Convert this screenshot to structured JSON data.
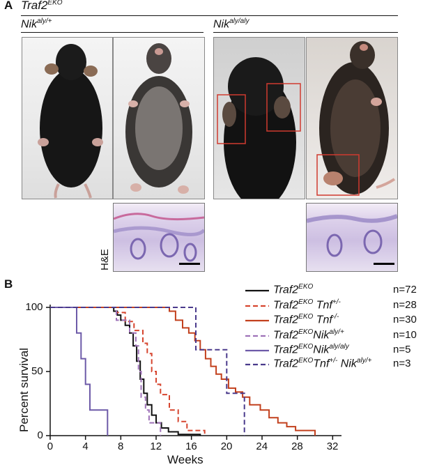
{
  "panel_a": {
    "letter": "A",
    "title": {
      "base": "Traf2",
      "sup": "EKO"
    },
    "group_left": {
      "base": "Nik",
      "sup": "aly/+"
    },
    "group_right": {
      "base": "Nik",
      "sup": "aly/aly"
    },
    "he_label": "H&E"
  },
  "panel_b": {
    "letter": "B"
  },
  "chart_data": {
    "type": "line",
    "xlabel": "Weeks",
    "ylabel": "Percent survival",
    "xlim": [
      0,
      33
    ],
    "ylim": [
      0,
      100
    ],
    "xticks": [
      0,
      4,
      8,
      12,
      16,
      20,
      24,
      28,
      32
    ],
    "yticks": [
      0,
      50,
      100
    ],
    "series": [
      {
        "name": "Traf2 EKO",
        "base": "Traf2",
        "sup1": "EKO",
        "extra": [],
        "n": "n=72",
        "color": "#111111",
        "dash": "",
        "points": [
          [
            0,
            100
          ],
          [
            7.2,
            100
          ],
          [
            7.2,
            97
          ],
          [
            7.6,
            97
          ],
          [
            7.6,
            94
          ],
          [
            8.0,
            94
          ],
          [
            8.0,
            90
          ],
          [
            8.5,
            90
          ],
          [
            8.5,
            86
          ],
          [
            9.0,
            86
          ],
          [
            9.0,
            80
          ],
          [
            9.4,
            80
          ],
          [
            9.4,
            70
          ],
          [
            9.8,
            70
          ],
          [
            9.8,
            58
          ],
          [
            10.2,
            58
          ],
          [
            10.2,
            44
          ],
          [
            10.6,
            44
          ],
          [
            10.6,
            33
          ],
          [
            11.0,
            33
          ],
          [
            11.0,
            24
          ],
          [
            11.5,
            24
          ],
          [
            11.5,
            16
          ],
          [
            12.0,
            16
          ],
          [
            12.0,
            10
          ],
          [
            12.6,
            10
          ],
          [
            12.6,
            6
          ],
          [
            13.4,
            6
          ],
          [
            13.4,
            3
          ],
          [
            14.5,
            3
          ],
          [
            14.5,
            1
          ],
          [
            17.0,
            1
          ],
          [
            17.0,
            0
          ]
        ]
      },
      {
        "name": "Traf2 EKO Tnf+/-",
        "base": "Traf2",
        "sup1": "EKO",
        "extra": [
          {
            "base": " Tnf",
            "sup": "+/-"
          }
        ],
        "n": "n=28",
        "color": "#d6452f",
        "dash": "7,4",
        "points": [
          [
            0,
            100
          ],
          [
            7.5,
            100
          ],
          [
            7.5,
            96
          ],
          [
            8.5,
            96
          ],
          [
            8.5,
            89
          ],
          [
            9.5,
            89
          ],
          [
            9.5,
            82
          ],
          [
            10.5,
            82
          ],
          [
            10.5,
            72
          ],
          [
            11.0,
            72
          ],
          [
            11.0,
            64
          ],
          [
            11.5,
            64
          ],
          [
            11.5,
            50
          ],
          [
            12.0,
            50
          ],
          [
            12.0,
            40
          ],
          [
            12.5,
            40
          ],
          [
            12.5,
            32
          ],
          [
            13.5,
            32
          ],
          [
            13.5,
            20
          ],
          [
            14.5,
            20
          ],
          [
            14.5,
            11
          ],
          [
            15.5,
            11
          ],
          [
            15.5,
            4
          ],
          [
            17.5,
            4
          ],
          [
            17.5,
            0
          ]
        ]
      },
      {
        "name": "Traf2 EKO Tnf-/-",
        "base": "Traf2",
        "sup1": "EKO",
        "extra": [
          {
            "base": " Tnf",
            "sup": "-/-"
          }
        ],
        "n": "n=30",
        "color": "#c2401d",
        "dash": "",
        "points": [
          [
            0,
            100
          ],
          [
            13.5,
            100
          ],
          [
            13.5,
            97
          ],
          [
            14.2,
            97
          ],
          [
            14.2,
            90
          ],
          [
            15.0,
            90
          ],
          [
            15.0,
            84
          ],
          [
            15.7,
            84
          ],
          [
            15.7,
            80
          ],
          [
            16.4,
            80
          ],
          [
            16.4,
            74
          ],
          [
            17.0,
            74
          ],
          [
            17.0,
            67
          ],
          [
            17.6,
            67
          ],
          [
            17.6,
            60
          ],
          [
            18.2,
            60
          ],
          [
            18.2,
            54
          ],
          [
            18.8,
            54
          ],
          [
            18.8,
            48
          ],
          [
            19.4,
            48
          ],
          [
            19.4,
            44
          ],
          [
            20.2,
            44
          ],
          [
            20.2,
            37
          ],
          [
            21.0,
            37
          ],
          [
            21.0,
            34
          ],
          [
            21.8,
            34
          ],
          [
            21.8,
            30
          ],
          [
            22.6,
            30
          ],
          [
            22.6,
            24
          ],
          [
            23.8,
            24
          ],
          [
            23.8,
            20
          ],
          [
            24.8,
            20
          ],
          [
            24.8,
            14
          ],
          [
            25.8,
            14
          ],
          [
            25.8,
            10
          ],
          [
            26.8,
            10
          ],
          [
            26.8,
            7
          ],
          [
            27.8,
            7
          ],
          [
            27.8,
            4
          ],
          [
            30.0,
            4
          ],
          [
            30.0,
            0
          ]
        ]
      },
      {
        "name": "Traf2 EKO Nik aly/+",
        "base": "Traf2",
        "sup1": "EKO",
        "extra": [
          {
            "base": "Nik",
            "sup": "aly/+"
          }
        ],
        "n": "n=10",
        "color": "#9e72b8",
        "dash": "7,4",
        "points": [
          [
            0,
            100
          ],
          [
            7.5,
            100
          ],
          [
            7.5,
            90
          ],
          [
            9.0,
            90
          ],
          [
            9.0,
            80
          ],
          [
            9.7,
            80
          ],
          [
            9.7,
            70
          ],
          [
            10.0,
            70
          ],
          [
            10.0,
            50
          ],
          [
            10.3,
            50
          ],
          [
            10.3,
            30
          ],
          [
            10.8,
            30
          ],
          [
            10.8,
            20
          ],
          [
            11.2,
            20
          ],
          [
            11.2,
            10
          ],
          [
            12.5,
            10
          ],
          [
            12.5,
            0
          ]
        ]
      },
      {
        "name": "Traf2 EKO Nik aly/aly",
        "base": "Traf2",
        "sup1": "EKO",
        "extra": [
          {
            "base": "Nik",
            "sup": "aly/aly"
          }
        ],
        "n": "n=5",
        "color": "#6d5aa8",
        "dash": "",
        "points": [
          [
            0,
            100
          ],
          [
            3.0,
            100
          ],
          [
            3.0,
            80
          ],
          [
            3.5,
            80
          ],
          [
            3.5,
            60
          ],
          [
            4.0,
            60
          ],
          [
            4.0,
            40
          ],
          [
            4.5,
            40
          ],
          [
            4.5,
            20
          ],
          [
            6.5,
            20
          ],
          [
            6.5,
            0
          ]
        ]
      },
      {
        "name": "Traf2 EKO Tnf+/- Nik aly/+",
        "base": "Traf2",
        "sup1": "EKO",
        "extra": [
          {
            "base": "Tnf",
            "sup": "+/-"
          },
          {
            "base": " Nik",
            "sup": "aly/+"
          }
        ],
        "n": "n=3",
        "color": "#4a3a8c",
        "dash": "7,4",
        "points": [
          [
            0,
            100
          ],
          [
            16.5,
            100
          ],
          [
            16.5,
            67
          ],
          [
            20.0,
            67
          ],
          [
            20.0,
            33
          ],
          [
            22.0,
            33
          ],
          [
            22.0,
            0
          ]
        ]
      }
    ]
  }
}
